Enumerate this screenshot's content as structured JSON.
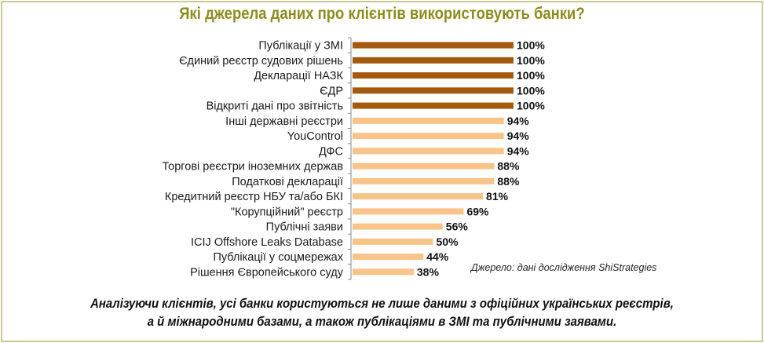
{
  "title": "Які джерела даних про клієнтів використовують банки?",
  "source_note": "Джерело: дані дослідження ShiStrategies",
  "conclusion": {
    "line1": "Аналізуючи клієнтів, усі банки користуються не лише даними з офіційних українських реєстрів,",
    "line2": "а й міжнародними базами, а також публікаціями в ЗМІ та публічними заявами."
  },
  "colors": {
    "highlight_bar": "#a35a0d",
    "regular_bar": "#f9c48a",
    "title": "#8c8c1f",
    "frame": "#c9c99b"
  },
  "chart_data": {
    "type": "bar",
    "orientation": "horizontal",
    "title": "Які джерела даних про клієнтів використовують банки?",
    "xlabel": "",
    "ylabel": "",
    "xlim": [
      0,
      100
    ],
    "unit": "%",
    "grid": false,
    "legend": "none",
    "categories": [
      "Публікації у ЗМІ",
      "Єдиний реєстр судових рішень",
      "Декларації НАЗК",
      "ЄДР",
      "Відкриті дані про звітність",
      "Інші державні реєстри",
      "YouControl",
      "ДФС",
      "Торгові реєстри іноземних держав",
      "Податкові декларації",
      "Кредитний реєстр НБУ та/або БКІ",
      "\"Корупційний\" реєстр",
      "Публічні заяви",
      "ICIJ Offshore Leaks Database",
      "Публікації у соцмережах",
      "Рішення Європейського суду"
    ],
    "values": [
      100,
      100,
      100,
      100,
      100,
      94,
      94,
      94,
      88,
      88,
      81,
      69,
      56,
      50,
      44,
      38
    ],
    "labels": [
      "100%",
      "100%",
      "100%",
      "100%",
      "100%",
      "94%",
      "94%",
      "94%",
      "88%",
      "88%",
      "81%",
      "69%",
      "56%",
      "50%",
      "44%",
      "38%"
    ],
    "highlighted": [
      true,
      true,
      true,
      true,
      true,
      false,
      false,
      false,
      false,
      false,
      false,
      false,
      false,
      false,
      false,
      false
    ],
    "annotation": "Джерело: дані дослідження ShiStrategies"
  }
}
